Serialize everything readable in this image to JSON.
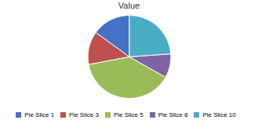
{
  "chart_data": {
    "type": "pie",
    "title": "Value",
    "categories": [
      "Pie Slice 1",
      "Pie Slice 3",
      "Pie Slice 5",
      "Pie Slice 8",
      "Pie Slice 10"
    ],
    "values": [
      29,
      25,
      75,
      18,
      46
    ],
    "colors": [
      "#4472C4",
      "#C0504D",
      "#9BBB59",
      "#8064A2",
      "#4BACC6"
    ],
    "legend": "bottom"
  }
}
